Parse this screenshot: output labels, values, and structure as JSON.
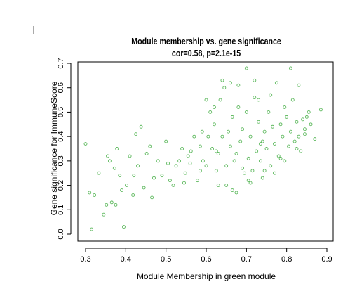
{
  "chart_data": {
    "type": "scatter",
    "title": "Module membership vs. gene significance",
    "subtitle": "cor=0.58, p=2.1e-15",
    "xlabel": "Module Membership in green module",
    "ylabel": "Gene significance for ImmuneScore",
    "xlim": [
      0.29,
      0.91
    ],
    "ylim": [
      -0.005,
      0.705
    ],
    "xticks": [
      "0.3",
      "0.4",
      "0.5",
      "0.6",
      "0.7",
      "0.8",
      "0.9"
    ],
    "xtick_values": [
      0.3,
      0.4,
      0.5,
      0.6,
      0.7,
      0.8,
      0.9
    ],
    "yticks": [
      "0.0",
      "0.1",
      "0.2",
      "0.3",
      "0.4",
      "0.5",
      "0.6",
      "0.7"
    ],
    "ytick_values": [
      0.0,
      0.1,
      0.2,
      0.3,
      0.4,
      0.5,
      0.6,
      0.7
    ],
    "grid": false,
    "point_color": "#5cb85c",
    "series": [
      {
        "x": [
          0.3,
          0.31,
          0.315,
          0.322,
          0.333,
          0.345,
          0.352,
          0.36,
          0.365,
          0.372,
          0.378,
          0.385,
          0.39,
          0.395,
          0.402,
          0.41,
          0.418,
          0.425,
          0.43,
          0.438,
          0.445,
          0.452,
          0.46,
          0.47,
          0.48,
          0.49,
          0.5,
          0.51,
          0.518,
          0.525,
          0.533,
          0.54,
          0.548,
          0.555,
          0.562,
          0.57,
          0.578,
          0.585,
          0.592,
          0.6,
          0.605,
          0.61,
          0.615,
          0.62,
          0.625,
          0.63,
          0.635,
          0.64,
          0.645,
          0.65,
          0.655,
          0.66,
          0.665,
          0.67,
          0.675,
          0.68,
          0.685,
          0.69,
          0.695,
          0.7,
          0.705,
          0.71,
          0.715,
          0.72,
          0.725,
          0.73,
          0.735,
          0.74,
          0.745,
          0.75,
          0.755,
          0.76,
          0.765,
          0.77,
          0.775,
          0.78,
          0.785,
          0.79,
          0.795,
          0.8,
          0.805,
          0.81,
          0.815,
          0.82,
          0.825,
          0.83,
          0.835,
          0.84,
          0.845,
          0.85,
          0.855,
          0.86,
          0.87,
          0.885,
          0.355,
          0.375,
          0.42,
          0.465,
          0.505,
          0.545,
          0.585,
          0.625,
          0.665,
          0.705,
          0.745,
          0.785,
          0.825,
          0.64,
          0.66,
          0.7,
          0.72,
          0.76,
          0.62,
          0.6,
          0.68,
          0.73,
          0.81,
          0.83,
          0.69,
          0.65,
          0.71,
          0.74,
          0.77,
          0.56,
          0.59,
          0.63,
          0.675,
          0.735,
          0.795,
          0.845
        ],
        "y": [
          0.37,
          0.17,
          0.02,
          0.16,
          0.25,
          0.08,
          0.12,
          0.3,
          0.13,
          0.27,
          0.35,
          0.24,
          0.18,
          0.03,
          0.2,
          0.32,
          0.16,
          0.41,
          0.28,
          0.44,
          0.19,
          0.33,
          0.36,
          0.23,
          0.3,
          0.24,
          0.38,
          0.22,
          0.2,
          0.28,
          0.3,
          0.35,
          0.25,
          0.32,
          0.34,
          0.4,
          0.22,
          0.36,
          0.3,
          0.28,
          0.4,
          0.5,
          0.35,
          0.45,
          0.26,
          0.33,
          0.55,
          0.4,
          0.6,
          0.28,
          0.42,
          0.36,
          0.48,
          0.3,
          0.33,
          0.52,
          0.38,
          0.43,
          0.25,
          0.5,
          0.31,
          0.4,
          0.26,
          0.56,
          0.34,
          0.46,
          0.3,
          0.38,
          0.42,
          0.35,
          0.5,
          0.28,
          0.44,
          0.37,
          0.62,
          0.32,
          0.45,
          0.4,
          0.52,
          0.48,
          0.36,
          0.42,
          0.55,
          0.38,
          0.46,
          0.4,
          0.34,
          0.47,
          0.43,
          0.48,
          0.5,
          0.45,
          0.39,
          0.51,
          0.32,
          0.12,
          0.24,
          0.15,
          0.29,
          0.21,
          0.26,
          0.34,
          0.18,
          0.22,
          0.26,
          0.31,
          0.35,
          0.63,
          0.62,
          0.68,
          0.63,
          0.57,
          0.52,
          0.55,
          0.61,
          0.55,
          0.68,
          0.61,
          0.27,
          0.2,
          0.21,
          0.23,
          0.25,
          0.29,
          0.42,
          0.2,
          0.17,
          0.37,
          0.3,
          0.41
        ]
      }
    ]
  }
}
